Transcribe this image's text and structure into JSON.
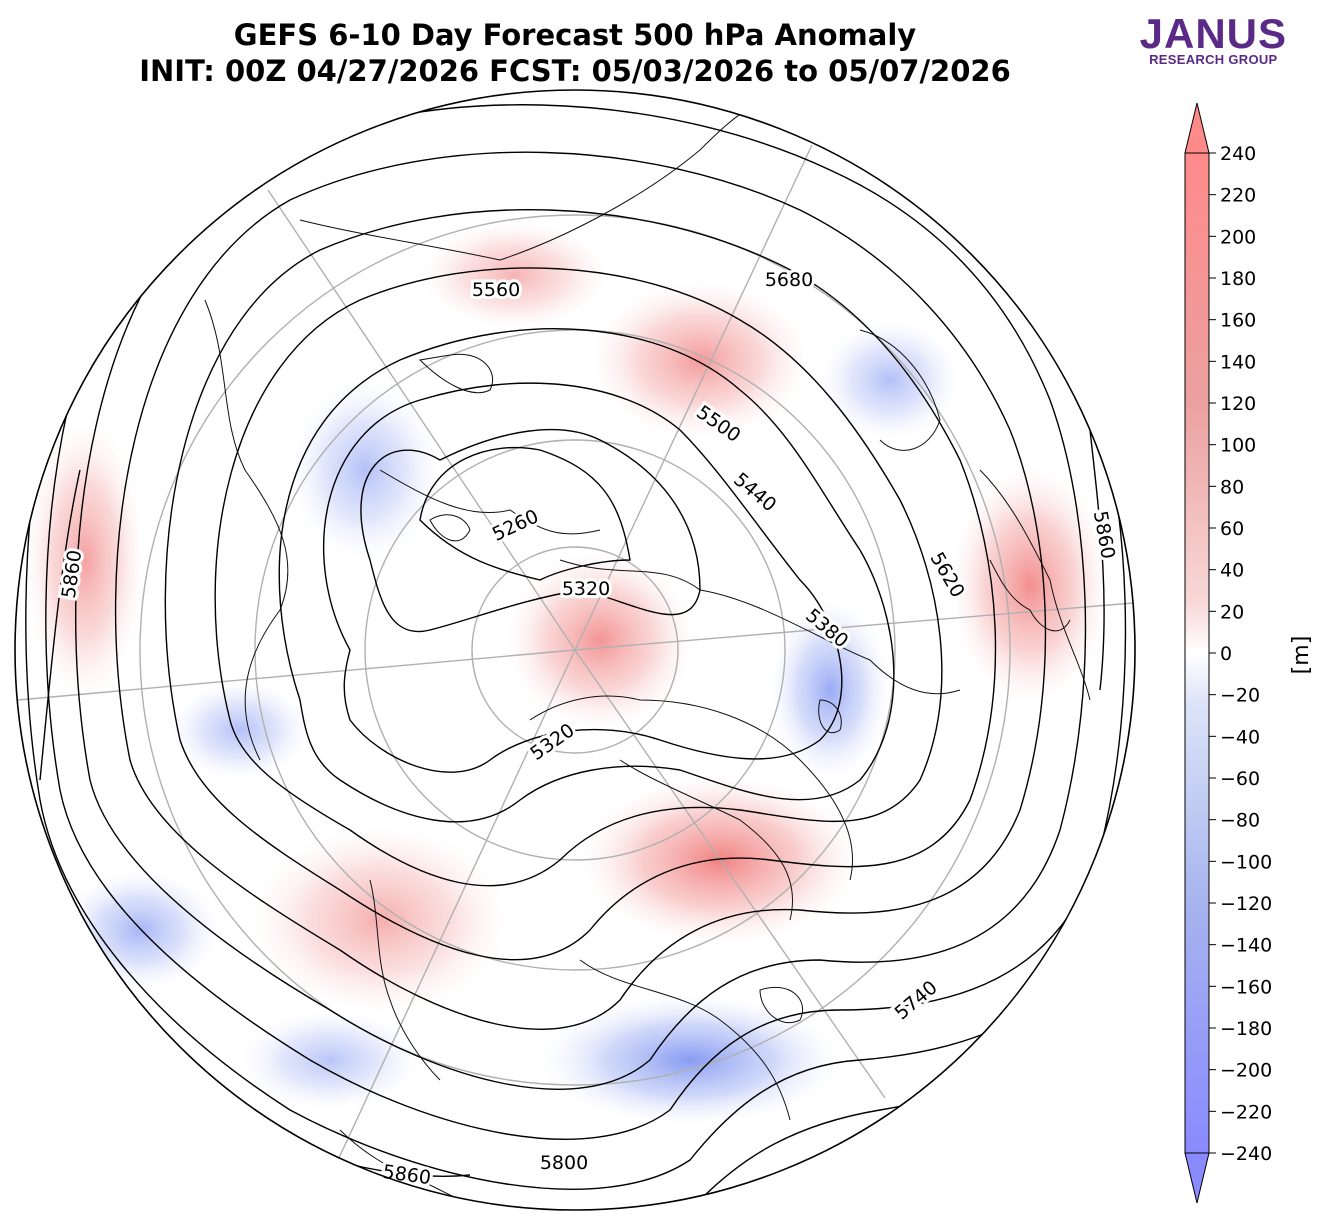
{
  "title": {
    "line1": "GEFS 6-10 Day Forecast 500 hPa Anomaly",
    "line2": "INIT: 00Z 04/27/2026    FCST: 05/03/2026 to 05/07/2026"
  },
  "logo": {
    "name": "JANUS",
    "subtitle": "RESEARCH GROUP",
    "color": "#5b2a86"
  },
  "colorbar": {
    "unit": "[m]",
    "ticks": [
      "240",
      "220",
      "200",
      "180",
      "160",
      "140",
      "120",
      "100",
      "80",
      "60",
      "40",
      "20",
      "0",
      "−20",
      "−40",
      "−60",
      "−80",
      "−100",
      "−120",
      "−140",
      "−160",
      "−180",
      "−200",
      "−220",
      "−240"
    ],
    "positive_color": "#ff8a8a",
    "negative_color": "#8a8aff"
  },
  "contour_labels": [
    {
      "text": "5560"
    },
    {
      "text": "5680"
    },
    {
      "text": "5500"
    },
    {
      "text": "5440"
    },
    {
      "text": "5260"
    },
    {
      "text": "5320"
    },
    {
      "text": "5620"
    },
    {
      "text": "5380"
    },
    {
      "text": "5860"
    },
    {
      "text": "5320"
    },
    {
      "text": "5860"
    },
    {
      "text": "5740"
    },
    {
      "text": "5800"
    },
    {
      "text": "5860"
    }
  ],
  "anomalies": [
    {
      "sign": "positive",
      "strength": 0.3
    },
    {
      "sign": "positive",
      "strength": 0.25
    },
    {
      "sign": "positive",
      "strength": 0.5
    },
    {
      "sign": "positive",
      "strength": 0.45
    },
    {
      "sign": "positive",
      "strength": 0.7
    },
    {
      "sign": "positive",
      "strength": 0.55
    },
    {
      "sign": "positive",
      "strength": 0.4
    },
    {
      "sign": "negative",
      "strength": 0.25
    },
    {
      "sign": "negative",
      "strength": 0.25
    },
    {
      "sign": "negative",
      "strength": 0.45
    },
    {
      "sign": "negative",
      "strength": 0.6
    },
    {
      "sign": "negative",
      "strength": 0.35
    },
    {
      "sign": "negative",
      "strength": 0.25
    },
    {
      "sign": "negative",
      "strength": 0.2
    }
  ]
}
